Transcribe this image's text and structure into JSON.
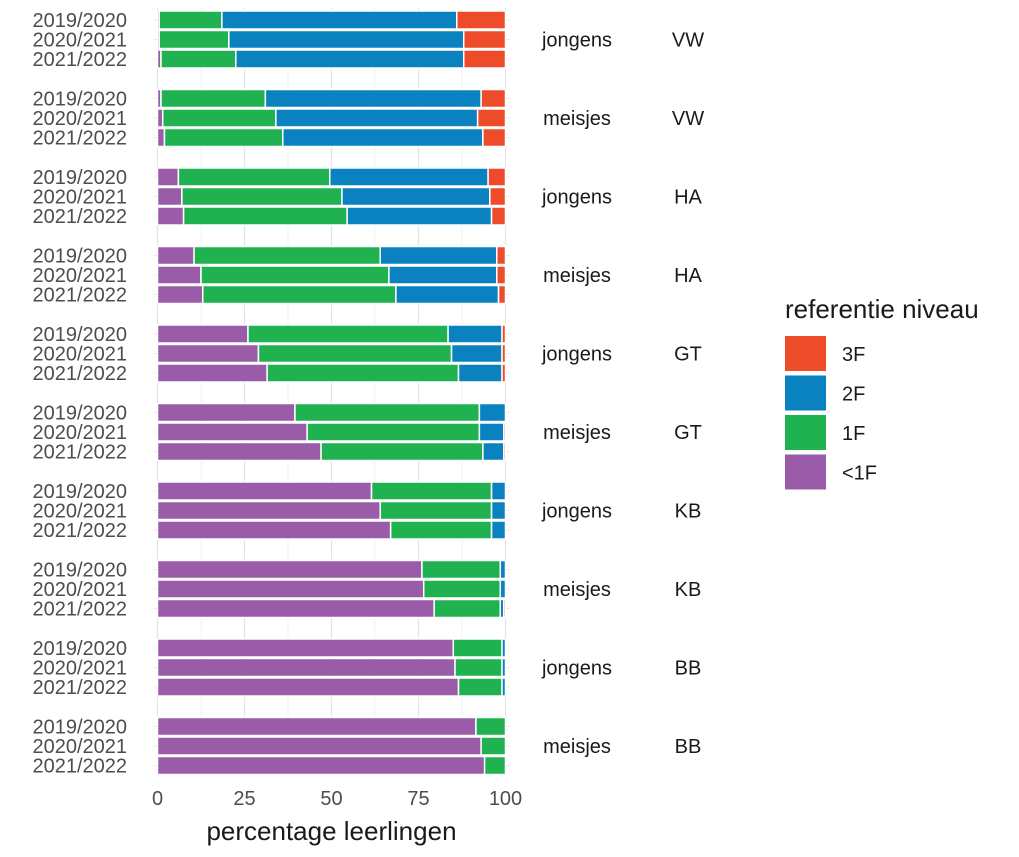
{
  "chart_data": {
    "type": "bar",
    "orientation": "horizontal",
    "stacked": true,
    "xlabel": "percentage leerlingen",
    "xlim": [
      0,
      100
    ],
    "xticks": [
      "0",
      "25",
      "50",
      "75",
      "100"
    ],
    "legend": {
      "title": "referentie niveau",
      "placement": "right",
      "entries": [
        {
          "label": "3F",
          "color": "#EE4B2B"
        },
        {
          "label": "2F",
          "color": "#0B82C0"
        },
        {
          "label": "1F",
          "color": "#20B250"
        },
        {
          "label": "<1F",
          "color": "#9A5BA8"
        }
      ]
    },
    "stack_order": [
      "<1F",
      "1F",
      "2F",
      "3F"
    ],
    "colors": {
      "<1F": "#9A5BA8",
      "1F": "#20B250",
      "2F": "#0B82C0",
      "3F": "#EE4B2B"
    },
    "years": [
      "2019/2020",
      "2020/2021",
      "2021/2022"
    ],
    "groups": [
      {
        "gender": "jongens",
        "level": "VW",
        "bars": [
          {
            "year": "2019/2020",
            "values": {
              "<1F": 0.5,
              "1F": 18,
              "2F": 67.5,
              "3F": 14
            }
          },
          {
            "year": "2020/2021",
            "values": {
              "<1F": 0.5,
              "1F": 20,
              "2F": 67.5,
              "3F": 12
            }
          },
          {
            "year": "2021/2022",
            "values": {
              "<1F": 1,
              "1F": 21.5,
              "2F": 65.5,
              "3F": 12
            }
          }
        ]
      },
      {
        "gender": "meisjes",
        "level": "VW",
        "bars": [
          {
            "year": "2019/2020",
            "values": {
              "<1F": 1,
              "1F": 30,
              "2F": 62,
              "3F": 7
            }
          },
          {
            "year": "2020/2021",
            "values": {
              "<1F": 1.5,
              "1F": 32.5,
              "2F": 58,
              "3F": 8
            }
          },
          {
            "year": "2021/2022",
            "values": {
              "<1F": 2,
              "1F": 34,
              "2F": 57.5,
              "3F": 6.5
            }
          }
        ]
      },
      {
        "gender": "jongens",
        "level": "HA",
        "bars": [
          {
            "year": "2019/2020",
            "values": {
              "<1F": 6,
              "1F": 43.5,
              "2F": 45.5,
              "3F": 5
            }
          },
          {
            "year": "2020/2021",
            "values": {
              "<1F": 7,
              "1F": 46,
              "2F": 42.5,
              "3F": 4.5
            }
          },
          {
            "year": "2021/2022",
            "values": {
              "<1F": 7.5,
              "1F": 47,
              "2F": 41.5,
              "3F": 4
            }
          }
        ]
      },
      {
        "gender": "meisjes",
        "level": "HA",
        "bars": [
          {
            "year": "2019/2020",
            "values": {
              "<1F": 10.5,
              "1F": 53.5,
              "2F": 33.5,
              "3F": 2.5
            }
          },
          {
            "year": "2020/2021",
            "values": {
              "<1F": 12.5,
              "1F": 54,
              "2F": 31,
              "3F": 2.5
            }
          },
          {
            "year": "2021/2022",
            "values": {
              "<1F": 13,
              "1F": 55.5,
              "2F": 29.5,
              "3F": 2
            }
          }
        ]
      },
      {
        "gender": "jongens",
        "level": "GT",
        "bars": [
          {
            "year": "2019/2020",
            "values": {
              "<1F": 26,
              "1F": 57.5,
              "2F": 15.5,
              "3F": 1
            }
          },
          {
            "year": "2020/2021",
            "values": {
              "<1F": 29,
              "1F": 55.5,
              "2F": 14.5,
              "3F": 1
            }
          },
          {
            "year": "2021/2022",
            "values": {
              "<1F": 31.5,
              "1F": 55,
              "2F": 12.5,
              "3F": 1
            }
          }
        ]
      },
      {
        "gender": "meisjes",
        "level": "GT",
        "bars": [
          {
            "year": "2019/2020",
            "values": {
              "<1F": 39.5,
              "1F": 53,
              "2F": 7.5,
              "3F": 0
            }
          },
          {
            "year": "2020/2021",
            "values": {
              "<1F": 43,
              "1F": 49.5,
              "2F": 7,
              "3F": 0.5
            }
          },
          {
            "year": "2021/2022",
            "values": {
              "<1F": 47,
              "1F": 46.5,
              "2F": 6,
              "3F": 0.5
            }
          }
        ]
      },
      {
        "gender": "jongens",
        "level": "KB",
        "bars": [
          {
            "year": "2019/2020",
            "values": {
              "<1F": 61.5,
              "1F": 34.5,
              "2F": 4,
              "3F": 0
            }
          },
          {
            "year": "2020/2021",
            "values": {
              "<1F": 64,
              "1F": 32,
              "2F": 4,
              "3F": 0
            }
          },
          {
            "year": "2021/2022",
            "values": {
              "<1F": 67,
              "1F": 29,
              "2F": 4,
              "3F": 0
            }
          }
        ]
      },
      {
        "gender": "meisjes",
        "level": "KB",
        "bars": [
          {
            "year": "2019/2020",
            "values": {
              "<1F": 76,
              "1F": 22.5,
              "2F": 1.5,
              "3F": 0
            }
          },
          {
            "year": "2020/2021",
            "values": {
              "<1F": 76.5,
              "1F": 22,
              "2F": 1.5,
              "3F": 0
            }
          },
          {
            "year": "2021/2022",
            "values": {
              "<1F": 79.5,
              "1F": 19,
              "2F": 1,
              "3F": 0.5
            }
          }
        ]
      },
      {
        "gender": "jongens",
        "level": "BB",
        "bars": [
          {
            "year": "2019/2020",
            "values": {
              "<1F": 85,
              "1F": 14,
              "2F": 1,
              "3F": 0
            }
          },
          {
            "year": "2020/2021",
            "values": {
              "<1F": 85.5,
              "1F": 13.5,
              "2F": 1,
              "3F": 0
            }
          },
          {
            "year": "2021/2022",
            "values": {
              "<1F": 86.5,
              "1F": 12.5,
              "2F": 1,
              "3F": 0
            }
          }
        ]
      },
      {
        "gender": "meisjes",
        "level": "BB",
        "bars": [
          {
            "year": "2019/2020",
            "values": {
              "<1F": 91.5,
              "1F": 8.5,
              "2F": 0,
              "3F": 0
            }
          },
          {
            "year": "2020/2021",
            "values": {
              "<1F": 93,
              "1F": 7,
              "2F": 0,
              "3F": 0
            }
          },
          {
            "year": "2021/2022",
            "values": {
              "<1F": 94,
              "1F": 6,
              "2F": 0,
              "3F": 0
            }
          }
        ]
      }
    ]
  }
}
